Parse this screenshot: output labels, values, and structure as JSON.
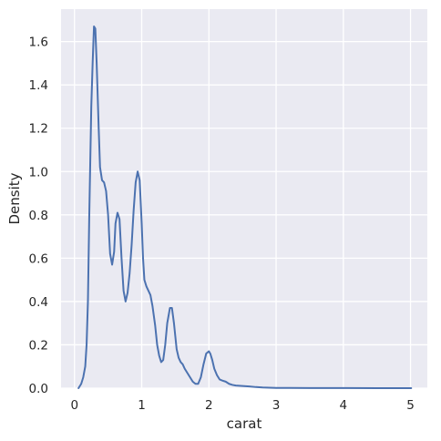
{
  "chart_data": {
    "type": "line",
    "title": "",
    "xlabel": "carat",
    "ylabel": "Density",
    "xlim": [
      -0.2,
      5.25
    ],
    "ylim": [
      0,
      1.75
    ],
    "xticks": [
      0,
      1,
      2,
      3,
      4,
      5
    ],
    "xtick_labels": [
      "0",
      "1",
      "2",
      "3",
      "4",
      "5"
    ],
    "yticks": [
      0.0,
      0.2,
      0.4,
      0.6,
      0.8,
      1.0,
      1.2,
      1.4,
      1.6
    ],
    "ytick_labels": [
      "0.0",
      "0.2",
      "0.4",
      "0.6",
      "0.8",
      "1.0",
      "1.2",
      "1.4",
      "1.6"
    ],
    "grid": true,
    "background": "#eaeaf2",
    "grid_color": "#ffffff",
    "line_color": "#4c72b0",
    "series": [
      {
        "x": [
          0.06,
          0.1,
          0.13,
          0.16,
          0.18,
          0.2,
          0.22,
          0.25,
          0.27,
          0.29,
          0.31,
          0.33,
          0.36,
          0.38,
          0.41,
          0.44,
          0.47,
          0.5,
          0.53,
          0.56,
          0.59,
          0.61,
          0.64,
          0.67,
          0.7,
          0.73,
          0.76,
          0.79,
          0.82,
          0.85,
          0.88,
          0.91,
          0.94,
          0.97,
          1.0,
          1.02,
          1.04,
          1.07,
          1.1,
          1.13,
          1.16,
          1.2,
          1.23,
          1.26,
          1.29,
          1.32,
          1.35,
          1.38,
          1.42,
          1.45,
          1.48,
          1.5,
          1.52,
          1.55,
          1.58,
          1.61,
          1.64,
          1.68,
          1.72,
          1.76,
          1.8,
          1.84,
          1.88,
          1.92,
          1.96,
          2.0,
          2.02,
          2.05,
          2.08,
          2.12,
          2.16,
          2.2,
          2.25,
          2.3,
          2.35,
          2.4,
          2.5,
          2.6,
          2.7,
          2.8,
          2.9,
          3.0,
          3.2,
          3.5,
          4.0,
          4.5,
          5.01
        ],
        "y": [
          0.0,
          0.02,
          0.05,
          0.1,
          0.2,
          0.4,
          0.8,
          1.3,
          1.5,
          1.67,
          1.66,
          1.5,
          1.2,
          1.02,
          0.96,
          0.95,
          0.91,
          0.8,
          0.62,
          0.57,
          0.63,
          0.76,
          0.81,
          0.78,
          0.6,
          0.45,
          0.4,
          0.44,
          0.53,
          0.66,
          0.82,
          0.95,
          1.0,
          0.96,
          0.76,
          0.6,
          0.5,
          0.47,
          0.45,
          0.43,
          0.38,
          0.29,
          0.2,
          0.15,
          0.12,
          0.13,
          0.2,
          0.3,
          0.37,
          0.37,
          0.3,
          0.24,
          0.18,
          0.14,
          0.12,
          0.11,
          0.09,
          0.07,
          0.05,
          0.03,
          0.02,
          0.02,
          0.05,
          0.11,
          0.16,
          0.17,
          0.16,
          0.13,
          0.09,
          0.06,
          0.04,
          0.035,
          0.03,
          0.02,
          0.015,
          0.012,
          0.01,
          0.008,
          0.005,
          0.003,
          0.002,
          0.001,
          0.0008,
          0.0005,
          0.0003,
          0.0002,
          0.0001
        ]
      }
    ]
  }
}
